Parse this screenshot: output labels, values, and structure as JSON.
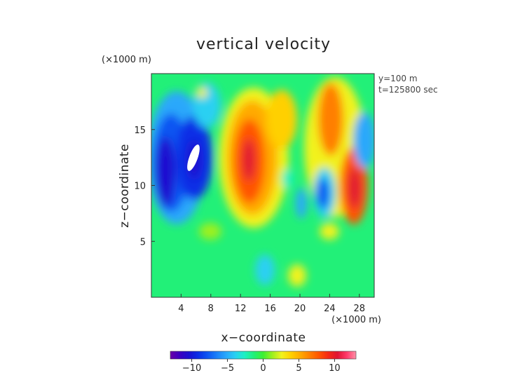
{
  "chart_data": {
    "type": "heatmap",
    "title": "vertical velocity",
    "xlabel": "x−coordinate",
    "ylabel": "z−coordinate",
    "x_unit": "(×1000 m)",
    "y_unit": "(×1000 m)",
    "xlim": [
      0,
      30
    ],
    "ylim": [
      0,
      20
    ],
    "x_ticks": [
      4,
      8,
      12,
      16,
      20,
      24,
      28
    ],
    "y_ticks": [
      5,
      10,
      15
    ],
    "annotations": [
      "y=100 m",
      "t=125800 sec"
    ],
    "colorbar": {
      "ticks": [
        -10,
        -5,
        0,
        5,
        10
      ],
      "range": [
        -13,
        13
      ],
      "colors": [
        "#6a00a8",
        "#3c00c0",
        "#1a10d0",
        "#0a2ee6",
        "#0d55f2",
        "#1b80f8",
        "#29a8fb",
        "#2ad0f2",
        "#1ef0c4",
        "#22f078",
        "#3cf032",
        "#9ef01e",
        "#f2f21e",
        "#ffd000",
        "#ffaa00",
        "#ff7f00",
        "#ff5500",
        "#f52a14",
        "#e01432",
        "#ff3a6a",
        "#ff90a8"
      ]
    },
    "features": [
      {
        "kind": "downdraft",
        "x": 2.5,
        "z": 11.5,
        "w": -8
      },
      {
        "kind": "downdraft",
        "x": 6,
        "z": 11.5,
        "w": -11
      },
      {
        "kind": "updraft",
        "x": 13,
        "z": 12,
        "w": 9
      },
      {
        "kind": "updraft",
        "x": 25,
        "z": 14,
        "w": 7
      },
      {
        "kind": "updraft",
        "x": 27,
        "z": 10,
        "w": 10
      },
      {
        "kind": "downdraft",
        "x": 23.5,
        "z": 9.5,
        "w": -7
      },
      {
        "kind": "updraft",
        "x": 20,
        "z": 2.5,
        "w": 3
      }
    ]
  }
}
